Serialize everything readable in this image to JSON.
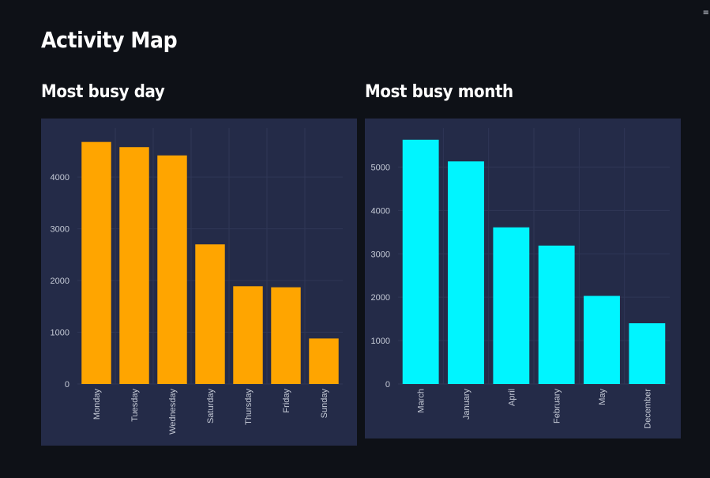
{
  "page": {
    "title": "Activity Map"
  },
  "colors": {
    "background": "#0e1117",
    "panel": "#242b48",
    "day_bars": "#ffa500",
    "month_bars": "#00f5ff"
  },
  "chart_data": [
    {
      "type": "bar",
      "title": "Most busy day",
      "categories": [
        "Monday",
        "Tuesday",
        "Wednesday",
        "Saturday",
        "Thursday",
        "Friday",
        "Sunday"
      ],
      "values": [
        4680,
        4580,
        4420,
        2700,
        1890,
        1870,
        880
      ],
      "yticks": [
        0,
        1000,
        2000,
        3000,
        4000
      ],
      "ylim": [
        0,
        4950
      ],
      "xlabel": "",
      "ylabel": "",
      "color": "#ffa500"
    },
    {
      "type": "bar",
      "title": "Most busy month",
      "categories": [
        "March",
        "January",
        "April",
        "February",
        "May",
        "December"
      ],
      "values": [
        5630,
        5130,
        3610,
        3190,
        2030,
        1400
      ],
      "yticks": [
        0,
        1000,
        2000,
        3000,
        4000,
        5000
      ],
      "ylim": [
        0,
        5900
      ],
      "xlabel": "",
      "ylabel": "",
      "color": "#00f5ff"
    }
  ]
}
